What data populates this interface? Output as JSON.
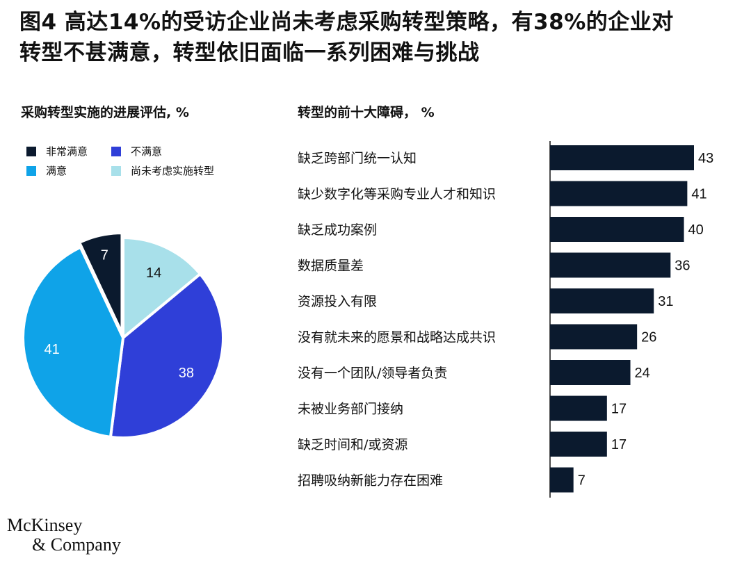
{
  "title": {
    "line1": "图4 高达14%的受访企业尚未考虑采购转型策略，有38%的企业对",
    "line2": "转型不甚满意，转型依旧面临一系列困难与挑战"
  },
  "logo": {
    "line1": "McKinsey",
    "line2": "& Company"
  },
  "chart_data": [
    {
      "type": "pie",
      "title": "采购转型实施的进展评估, %",
      "legend_position": "top",
      "slices": [
        {
          "name": "尚未考虑实施转型",
          "value": 14,
          "color": "#a8e0ea"
        },
        {
          "name": "不满意",
          "value": 38,
          "color": "#2f3fd8"
        },
        {
          "name": "满意",
          "value": 41,
          "color": "#0fa3e8"
        },
        {
          "name": "非常满意",
          "value": 7,
          "color": "#0b1a2e"
        }
      ],
      "legend": [
        {
          "name": "非常满意",
          "color": "#0b1a2e"
        },
        {
          "name": "不满意",
          "color": "#2f3fd8"
        },
        {
          "name": "满意",
          "color": "#0fa3e8"
        },
        {
          "name": "尚未考虑实施转型",
          "color": "#a8e0ea"
        }
      ]
    },
    {
      "type": "bar",
      "orientation": "horizontal",
      "title": "转型的前十大障碍， %",
      "xlim": [
        0,
        50
      ],
      "grid": false,
      "bar_color": "#0b1a2e",
      "categories": [
        "缺乏跨部门统一认知",
        "缺少数字化等采购专业人才和知识",
        "缺乏成功案例",
        "数据质量差",
        "资源投入有限",
        "没有就未来的愿景和战略达成共识",
        "没有一个团队/领导者负责",
        "未被业务部门接纳",
        "缺乏时间和/或资源",
        "招聘吸纳新能力存在困难"
      ],
      "values": [
        43,
        41,
        40,
        36,
        31,
        26,
        24,
        17,
        17,
        7
      ]
    }
  ]
}
